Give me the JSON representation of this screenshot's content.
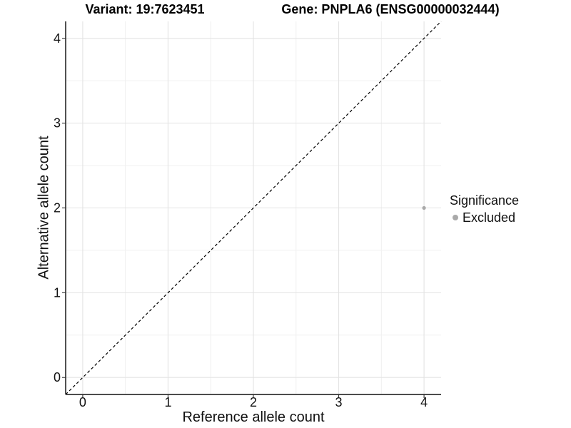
{
  "chart_data": {
    "type": "scatter",
    "titles": [
      "Variant: 19:7623451",
      "Gene: PNPLA6 (ENSG00000032444)"
    ],
    "xlabel": "Reference allele count",
    "ylabel": "Alternative allele count",
    "xlim": [
      -0.2,
      4.2
    ],
    "ylim": [
      -0.2,
      4.2
    ],
    "x_ticks": [
      0,
      1,
      2,
      3,
      4
    ],
    "y_ticks": [
      0,
      1,
      2,
      3,
      4
    ],
    "x_minor_ticks": [
      0.5,
      1.5,
      2.5,
      3.5
    ],
    "y_minor_ticks": [
      0.5,
      1.5,
      2.5,
      3.5
    ],
    "grid": true,
    "identity_line": {
      "style": "dashed",
      "color": "#000000",
      "span": [
        -0.2,
        4.2
      ]
    },
    "series": [
      {
        "name": "Excluded",
        "color": "#a9a9a9",
        "points": [
          [
            4,
            2
          ]
        ]
      }
    ],
    "legend": {
      "position": "right",
      "title": "Significance",
      "items": [
        {
          "label": "Excluded",
          "color": "#a9a9a9"
        }
      ]
    }
  },
  "colors": {
    "background": "#ffffff",
    "grid_major": "#e3e3e3",
    "grid_minor": "#f0f0f0",
    "axis_line": "#333333",
    "tick_mark": "#333333",
    "tick_label": "#111111",
    "title_text": "#000000",
    "point": "#a9a9a9"
  }
}
